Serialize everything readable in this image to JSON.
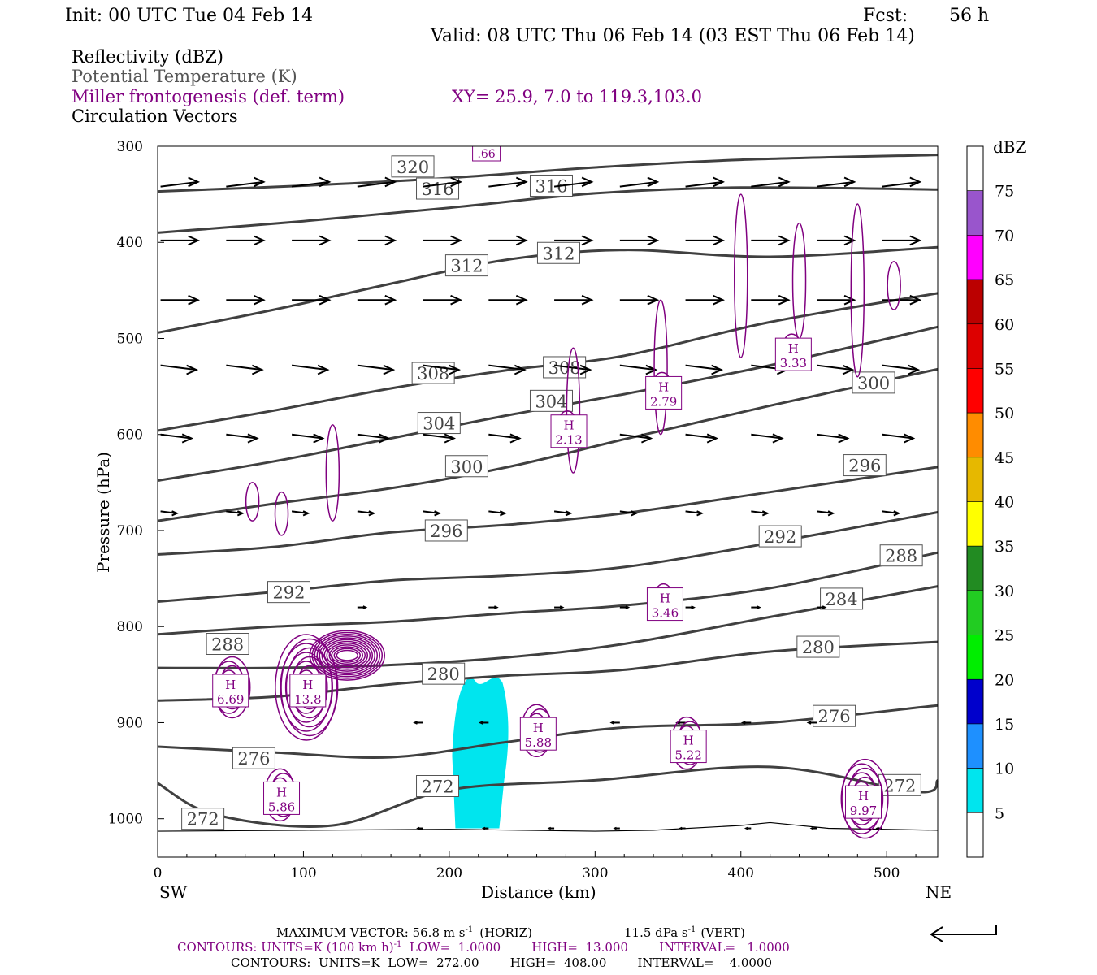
{
  "header": {
    "init": "Init: 00 UTC Tue 04 Feb 14",
    "fcst_label": "Fcst:",
    "fcst_value": "56 h",
    "valid": "Valid: 08 UTC Thu 06 Feb 14 (03 EST Thu 06 Feb 14)",
    "field1": "Reflectivity (dBZ)",
    "field2": "Potential Temperature (K)",
    "field3": "Miller frontogenesis (def. term)",
    "xy": "XY=  25.9,  7.0 to 119.3,103.0",
    "field4": "Circulation Vectors"
  },
  "colors": {
    "frontogenesis": "#800080",
    "theta": "#404040",
    "cyan": "#00e5ee",
    "text": "#000000",
    "field2_text": "#555555"
  },
  "chart_data": {
    "type": "cross-section",
    "xlabel": "Distance (km)",
    "ylabel": "Pressure (hPa)",
    "xlim": [
      0,
      535
    ],
    "ylim": [
      1040,
      300
    ],
    "x_ticks": [
      0,
      100,
      200,
      300,
      400,
      500
    ],
    "y_ticks": [
      300,
      400,
      500,
      600,
      700,
      800,
      900,
      1000
    ],
    "left_end_label": "SW",
    "right_end_label": "NE",
    "theta_contours": [
      {
        "label": "320",
        "at": [
          [
            0,
            347
          ],
          [
            100,
            341
          ],
          [
            200,
            333
          ],
          [
            300,
            322
          ],
          [
            400,
            314
          ],
          [
            535,
            309
          ]
        ],
        "labels_at": [
          [
            175,
            321
          ]
        ]
      },
      {
        "label": "316",
        "at": [
          [
            0,
            390
          ],
          [
            100,
            378
          ],
          [
            200,
            364
          ],
          [
            300,
            349
          ],
          [
            400,
            343
          ],
          [
            535,
            345
          ]
        ],
        "labels_at": [
          [
            192,
            344
          ],
          [
            270,
            341
          ]
        ]
      },
      {
        "label": "312",
        "at": [
          [
            0,
            494
          ],
          [
            80,
            470
          ],
          [
            160,
            443
          ],
          [
            240,
            418
          ],
          [
            320,
            408
          ],
          [
            420,
            415
          ],
          [
            535,
            405
          ]
        ],
        "labels_at": [
          [
            212,
            424
          ],
          [
            275,
            411
          ]
        ]
      },
      {
        "label": "308",
        "at": [
          [
            0,
            596
          ],
          [
            80,
            575
          ],
          [
            160,
            552
          ],
          [
            240,
            533
          ],
          [
            320,
            518
          ],
          [
            420,
            483
          ],
          [
            535,
            453
          ]
        ],
        "labels_at": [
          [
            189,
            536
          ],
          [
            279,
            530
          ]
        ]
      },
      {
        "label": "304",
        "at": [
          [
            0,
            648
          ],
          [
            80,
            628
          ],
          [
            160,
            604
          ],
          [
            240,
            580
          ],
          [
            320,
            558
          ],
          [
            420,
            528
          ],
          [
            535,
            488
          ]
        ],
        "labels_at": [
          [
            193,
            588
          ],
          [
            270,
            565
          ]
        ]
      },
      {
        "label": "300",
        "at": [
          [
            0,
            690
          ],
          [
            80,
            672
          ],
          [
            160,
            656
          ],
          [
            240,
            634
          ],
          [
            320,
            605
          ],
          [
            420,
            570
          ],
          [
            535,
            532
          ]
        ],
        "labels_at": [
          [
            212,
            633
          ],
          [
            491,
            546
          ]
        ]
      },
      {
        "label": "296",
        "at": [
          [
            0,
            725
          ],
          [
            80,
            717
          ],
          [
            160,
            702
          ],
          [
            240,
            694
          ],
          [
            320,
            682
          ],
          [
            420,
            660
          ],
          [
            535,
            634
          ]
        ],
        "labels_at": [
          [
            198,
            700
          ],
          [
            485,
            632
          ]
        ]
      },
      {
        "label": "292",
        "at": [
          [
            0,
            774
          ],
          [
            80,
            764
          ],
          [
            160,
            752
          ],
          [
            240,
            747
          ],
          [
            320,
            738
          ],
          [
            420,
            713
          ],
          [
            535,
            681
          ]
        ],
        "labels_at": [
          [
            90,
            764
          ],
          [
            427,
            706
          ]
        ]
      },
      {
        "label": "288",
        "at": [
          [
            0,
            808
          ],
          [
            80,
            800
          ],
          [
            160,
            795
          ],
          [
            240,
            786
          ],
          [
            320,
            778
          ],
          [
            420,
            760
          ],
          [
            535,
            723
          ]
        ],
        "labels_at": [
          [
            48,
            818
          ],
          [
            510,
            726
          ]
        ]
      },
      {
        "label": "284",
        "at": [
          [
            0,
            843
          ],
          [
            80,
            843
          ],
          [
            160,
            840
          ],
          [
            240,
            832
          ],
          [
            320,
            818
          ],
          [
            420,
            790
          ],
          [
            535,
            758
          ]
        ],
        "labels_at": [
          [
            469,
            771
          ]
        ]
      },
      {
        "label": "280",
        "at": [
          [
            0,
            877
          ],
          [
            80,
            873
          ],
          [
            160,
            860
          ],
          [
            240,
            851
          ],
          [
            320,
            845
          ],
          [
            420,
            826
          ],
          [
            535,
            816
          ]
        ],
        "labels_at": [
          [
            196,
            849
          ],
          [
            453,
            821
          ]
        ]
      },
      {
        "label": "276",
        "at": [
          [
            0,
            925
          ],
          [
            80,
            931
          ],
          [
            160,
            936
          ],
          [
            240,
            920
          ],
          [
            320,
            905
          ],
          [
            420,
            900
          ],
          [
            535,
            882
          ]
        ],
        "labels_at": [
          [
            66,
            937
          ],
          [
            464,
            893
          ]
        ]
      },
      {
        "label": "272",
        "at": [
          [
            0,
            963
          ],
          [
            40,
            996
          ],
          [
            120,
            1007
          ],
          [
            200,
            970
          ],
          [
            300,
            960
          ],
          [
            420,
            946
          ],
          [
            520,
            972
          ],
          [
            535,
            960
          ]
        ],
        "labels_at": [
          [
            31,
            1000
          ],
          [
            192,
            966
          ],
          [
            509,
            965
          ]
        ]
      }
    ],
    "frontogenesis_maxima": [
      {
        "label": "H",
        "value": "6.69",
        "x": 50,
        "p": 870
      },
      {
        "label": "H",
        "value": "13.8",
        "x": 103,
        "p": 870
      },
      {
        "label": "H",
        "value": "5.86",
        "x": 85,
        "p": 982
      },
      {
        "label": "H",
        "value": "5.88",
        "x": 261,
        "p": 915
      },
      {
        "label": "H",
        "value": "5.22",
        "x": 364,
        "p": 928
      },
      {
        "label": "H",
        "value": "3.46",
        "x": 348,
        "p": 780
      },
      {
        "label": "H",
        "value": "2.79",
        "x": 347,
        "p": 560
      },
      {
        "label": "H",
        "value": "2.13",
        "x": 282,
        "p": 600
      },
      {
        "label": "H",
        "value": "3.33",
        "x": 436,
        "p": 520
      },
      {
        "label": "H",
        "value": "9.97",
        "x": 484,
        "p": 986
      }
    ],
    "frontogenesis_top_label": ".66",
    "reflectivity_region": {
      "dbz": "5-10",
      "x": [
        202,
        241
      ],
      "p": [
        850,
        1010
      ]
    },
    "colorbar": {
      "title": "dBZ",
      "levels": [
        "75",
        "70",
        "65",
        "60",
        "55",
        "50",
        "45",
        "40",
        "35",
        "30",
        "25",
        "20",
        "15",
        "10",
        "5"
      ],
      "colors": [
        "#ffffff",
        "#9955cc",
        "#ff00ff",
        "#bb0000",
        "#dd0000",
        "#ff0000",
        "#ff8c00",
        "#e6b800",
        "#ffff00",
        "#228b22",
        "#22cc22",
        "#00ee00",
        "#0000cc",
        "#1e90ff",
        "#00e5ee",
        "#ffffff"
      ]
    }
  },
  "footer": {
    "max_vector_prefix": "MAXIMUM VECTOR:  56.8 m s",
    "max_vector_mid": "(HORIZ)",
    "max_vector_vert": "11.5 dPa s",
    "max_vector_suffix": "(VERT)",
    "contours1_prefix": "CONTOURS:  UNITS=K (100 km h)",
    "contours1_rest": "  LOW=  1.0000        HIGH=  13.000        INTERVAL=   1.0000",
    "contours2": "CONTOURS:  UNITS=K  LOW=  272.00        HIGH=  408.00        INTERVAL=    4.0000",
    "exponent": "-1"
  }
}
